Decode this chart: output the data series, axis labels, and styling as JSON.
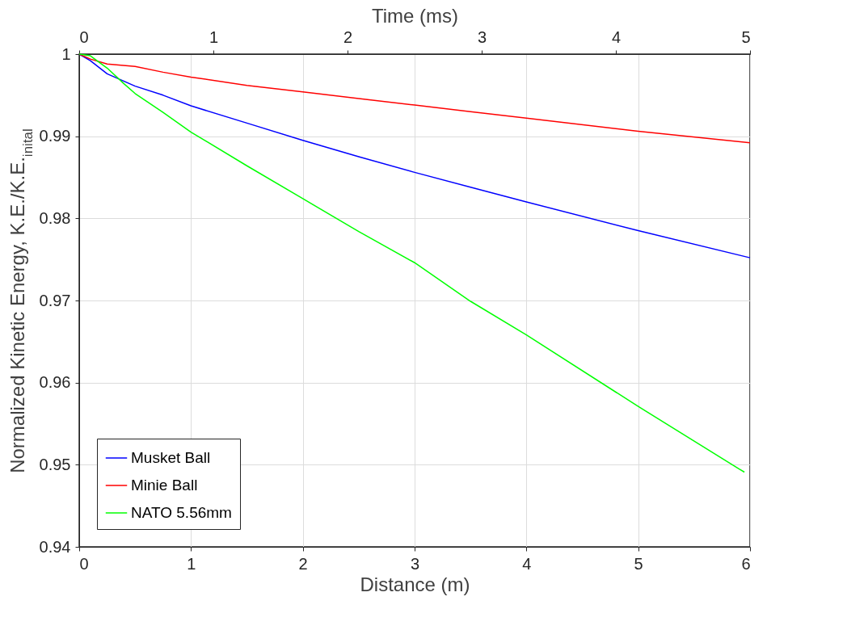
{
  "chart_data": {
    "type": "line",
    "xlabel": "Distance (m)",
    "ylabel": "Normalized Kinetic Energy, K.E./K.E.$_{inital}$",
    "x2label": "Time (ms)",
    "x": [
      0,
      0.1,
      0.25,
      0.5,
      0.75,
      1,
      1.5,
      2,
      2.5,
      3,
      3.5,
      4,
      5,
      6
    ],
    "series": [
      {
        "name": "Musket Ball",
        "color": "#0000ff",
        "values": [
          1,
          0.9992,
          0.9976,
          0.9961,
          0.995,
          0.9937,
          0.9916,
          0.9895,
          0.9875,
          0.9856,
          0.9838,
          0.982,
          0.9785,
          0.9752
        ]
      },
      {
        "name": "Minie Ball",
        "color": "#ff0000",
        "values": [
          1,
          0.9994,
          0.9988,
          0.9985,
          0.9978,
          0.9972,
          0.9962,
          0.9954,
          0.9946,
          0.9938,
          0.993,
          0.9922,
          0.9906,
          0.9892
        ]
      },
      {
        "name": "NATO 5.56mm",
        "color": "#00ff00",
        "x": [
          0,
          0.1,
          0.25,
          0.4,
          0.5,
          0.75,
          1,
          1.5,
          2,
          2.5,
          3,
          3.5,
          4,
          5,
          5.9,
          5.95
        ],
        "values": [
          1,
          0.9998,
          0.9983,
          0.9964,
          0.9952,
          0.9929,
          0.9905,
          0.9864,
          0.9824,
          0.9784,
          0.9746,
          0.9699,
          0.9658,
          0.9571,
          0.9495,
          0.9491
        ]
      }
    ],
    "xlim": [
      0,
      6
    ],
    "xticks": [
      0,
      1,
      2,
      3,
      4,
      5,
      6
    ],
    "x2lim": [
      0,
      5
    ],
    "x2ticks": [
      0,
      1,
      2,
      3,
      4,
      5
    ],
    "ylim": [
      0.94,
      1
    ],
    "yticks": [
      0.94,
      0.95,
      0.96,
      0.97,
      0.98,
      0.99,
      1
    ],
    "grid": true,
    "legend": "bottom left"
  }
}
